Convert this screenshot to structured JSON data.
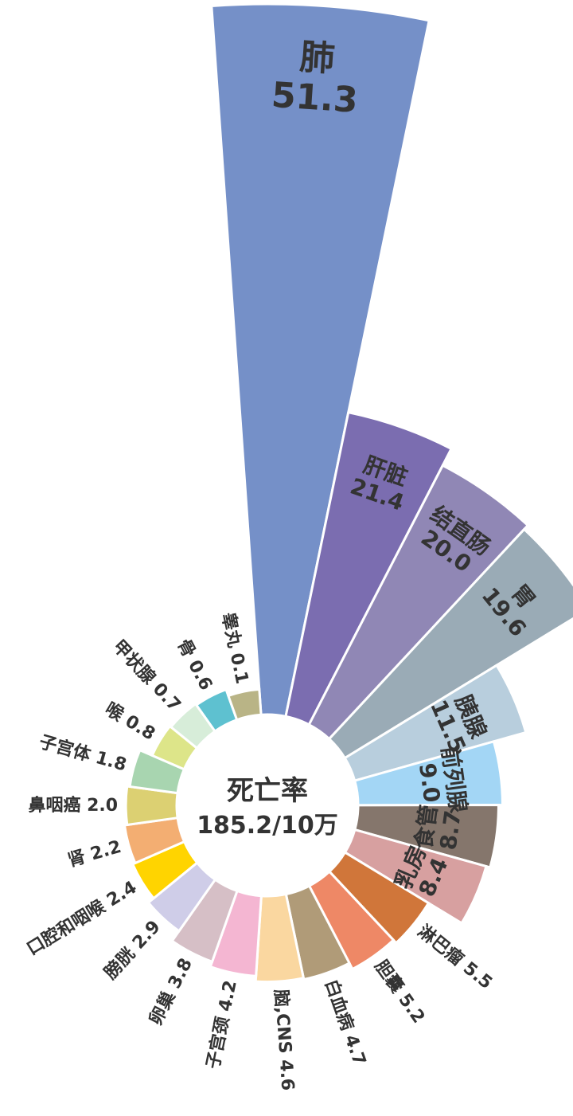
{
  "chart_data": {
    "type": "polar-bar",
    "center_label": "死亡率",
    "center_value": "185.2/10万",
    "series": [
      {
        "name": "肺",
        "value": 51.3,
        "value_text": "51.3",
        "color": "#7590C8"
      },
      {
        "name": "肝脏",
        "value": 21.4,
        "value_text": "21.4",
        "color": "#7B6DB0"
      },
      {
        "name": "结直肠",
        "value": 20.0,
        "value_text": "20.0",
        "color": "#9087B5"
      },
      {
        "name": "胃",
        "value": 19.6,
        "value_text": "19.6",
        "color": "#9AABB6"
      },
      {
        "name": "胰腺",
        "value": 11.5,
        "value_text": "11.5",
        "color": "#B8CEDD"
      },
      {
        "name": "前列腺",
        "value": 9.0,
        "value_text": "9.0",
        "color": "#A3D6F5"
      },
      {
        "name": "食管",
        "value": 8.7,
        "value_text": "8.7",
        "color": "#85766C"
      },
      {
        "name": "乳房",
        "value": 8.4,
        "value_text": "8.4",
        "color": "#D7A0A0"
      },
      {
        "name": "淋巴瘤",
        "value": 5.5,
        "value_text": "5.5",
        "color": "#D0763A"
      },
      {
        "name": "胆囊",
        "value": 5.2,
        "value_text": "5.2",
        "color": "#EE8866"
      },
      {
        "name": "白血病",
        "value": 4.7,
        "value_text": "4.7",
        "color": "#B09B78"
      },
      {
        "name": "脑,CNS",
        "value": 4.6,
        "value_text": "4.6",
        "color": "#FAD7A0"
      },
      {
        "name": "子宫颈",
        "value": 4.2,
        "value_text": "4.2",
        "color": "#F4B6D2"
      },
      {
        "name": "卵巢",
        "value": 3.8,
        "value_text": "3.8",
        "color": "#D6BFC6"
      },
      {
        "name": "膀胱",
        "value": 2.9,
        "value_text": "2.9",
        "color": "#CFCDE8"
      },
      {
        "name": "口腔和咽喉",
        "value": 2.4,
        "value_text": "2.4",
        "color": "#FFD400"
      },
      {
        "name": "肾",
        "value": 2.2,
        "value_text": "2.2",
        "color": "#F3AE72"
      },
      {
        "name": "鼻咽癌",
        "value": 2.0,
        "value_text": "2.0",
        "color": "#DCD072"
      },
      {
        "name": "子宫体",
        "value": 1.8,
        "value_text": "1.8",
        "color": "#A8D5B0"
      },
      {
        "name": "喉",
        "value": 0.8,
        "value_text": "0.8",
        "color": "#DDE589"
      },
      {
        "name": "甲状腺",
        "value": 0.7,
        "value_text": "0.7",
        "color": "#D7EDD9"
      },
      {
        "name": "骨",
        "value": 0.6,
        "value_text": "0.6",
        "color": "#5EC1D0"
      },
      {
        "name": "睾丸",
        "value": 0.1,
        "value_text": "0.1",
        "color": "#B9B486"
      }
    ]
  }
}
